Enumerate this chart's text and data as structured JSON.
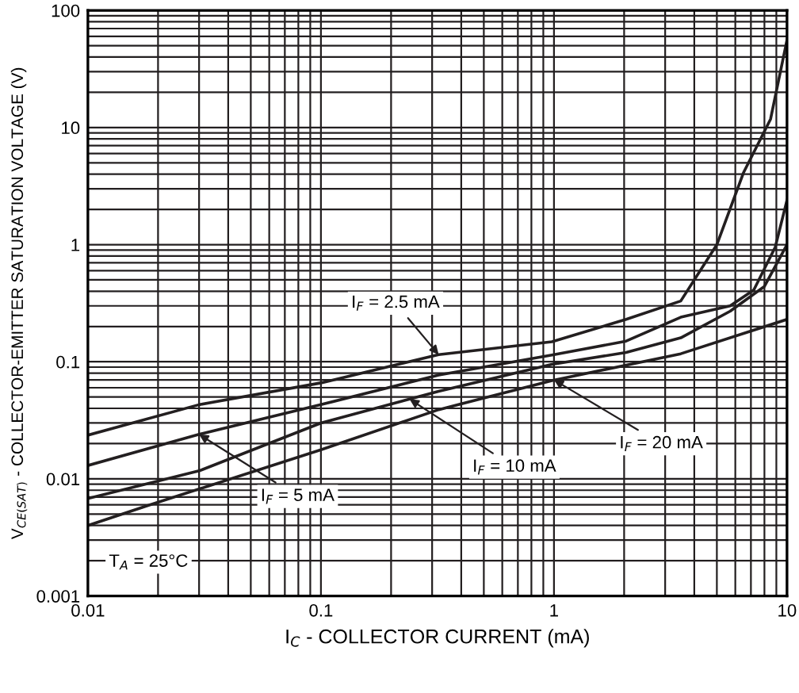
{
  "chart_data": {
    "type": "line",
    "xlabel": "I$_{C}$ - COLLECTOR CURRENT (mA)",
    "ylabel": "V$_{CE(SAT)}$ - COLLECTOR-EMITTER SATURATION VOLTAGE (V)",
    "log": "xy",
    "xlim": [
      0.01,
      10
    ],
    "ylim": [
      0.001,
      100
    ],
    "xticks": [
      0.01,
      0.1,
      1,
      10
    ],
    "yticks": [
      0.001,
      0.01,
      0.1,
      1,
      10,
      100
    ],
    "grid": true,
    "marker": "none",
    "line_style": "solid",
    "series": [
      {
        "color": "#231f20",
        "x": [
          0.01,
          0.03,
          0.1,
          0.32,
          0.98,
          2.04,
          3.5,
          5.0,
          6.5,
          8.5,
          10
        ],
        "values": [
          0.0236,
          0.043,
          0.066,
          0.115,
          0.148,
          0.23,
          0.33,
          1.0,
          4.1,
          11.8,
          56
        ]
      },
      {
        "color": "#231f20",
        "x": [
          0.01,
          0.03,
          0.1,
          0.32,
          0.98,
          2.04,
          3.5,
          5.7,
          7.2,
          8.9,
          10
        ],
        "values": [
          0.013,
          0.024,
          0.043,
          0.077,
          0.114,
          0.15,
          0.24,
          0.3,
          0.41,
          0.95,
          2.4
        ]
      },
      {
        "color": "#231f20",
        "x": [
          0.01,
          0.03,
          0.1,
          0.32,
          0.98,
          2.04,
          3.5,
          5.7,
          8,
          10
        ],
        "values": [
          0.0068,
          0.0117,
          0.03,
          0.056,
          0.095,
          0.12,
          0.16,
          0.27,
          0.44,
          1.0
        ]
      },
      {
        "color": "#231f20",
        "x": [
          0.01,
          0.018,
          0.1,
          0.32,
          0.98,
          3.5,
          10
        ],
        "values": [
          0.004,
          0.0059,
          0.0177,
          0.039,
          0.069,
          0.117,
          0.23
        ]
      }
    ],
    "annotations": [
      {
        "text": "I$_{F}$ = 2.5 mA",
        "x": 0.32,
        "y": 0.115
      },
      {
        "text": "I$_{F}$ = 5 mA",
        "x": 0.03,
        "y": 0.024
      },
      {
        "text": "I$_{F}$ = 10 mA",
        "x": 0.24,
        "y": 0.048
      },
      {
        "text": "I$_{F}$ = 20 mA",
        "x": 1.0,
        "y": 0.07
      },
      "T$_{A}$ = 25°C"
    ]
  }
}
